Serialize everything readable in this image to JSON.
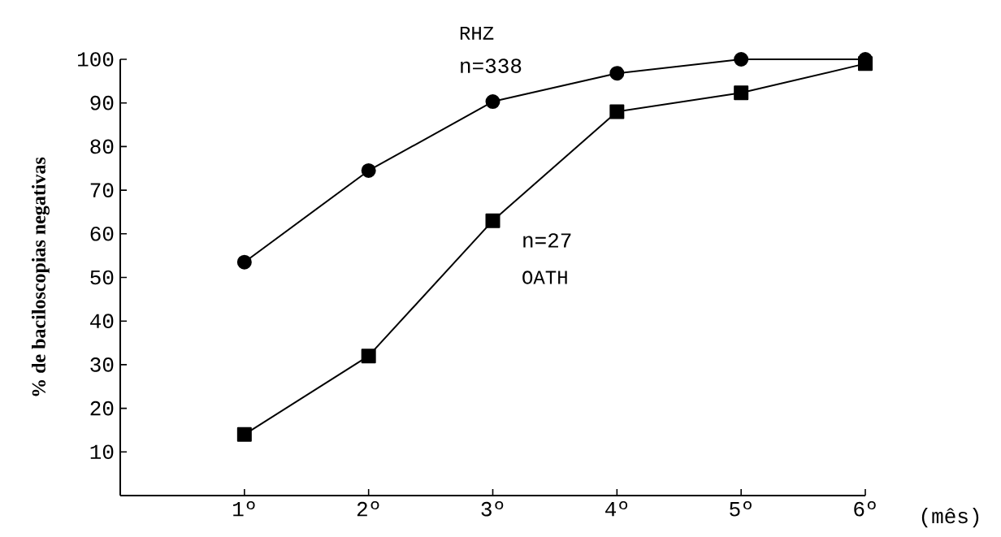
{
  "chart_data": {
    "type": "line",
    "categories": [
      "1º",
      "2º",
      "3º",
      "4º",
      "5º",
      "6º"
    ],
    "series": [
      {
        "name": "RHZ",
        "color": "#000000",
        "marker": "circle",
        "values": [
          53.5,
          74.5,
          90.3,
          96.8,
          100,
          100
        ]
      },
      {
        "name": "OATH",
        "color": "#000000",
        "marker": "square",
        "values": [
          14,
          32,
          63,
          88,
          92.3,
          99
        ]
      }
    ],
    "xlabel": "(mês)",
    "ylabel": "% de baciloscopias negativas",
    "annotations": [
      "n=338",
      "n=27"
    ],
    "ylim": [
      0,
      100
    ],
    "yticks": [
      10,
      20,
      30,
      40,
      50,
      60,
      70,
      80,
      90,
      100
    ],
    "legend": false,
    "grid": false
  }
}
